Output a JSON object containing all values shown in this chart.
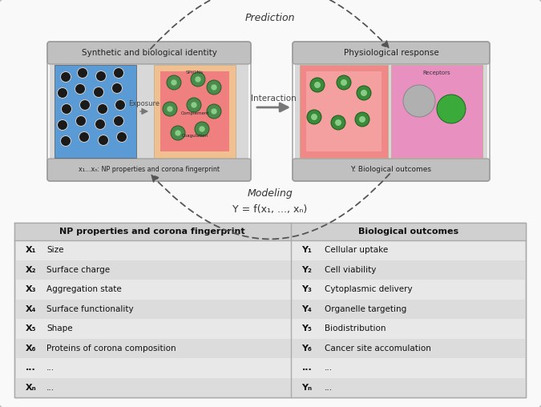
{
  "outer_bg": "#ffffff",
  "left_header": "NP properties and corona fingerprint",
  "right_header": "Biological outcomes",
  "x_labels": [
    "X₁",
    "X₂",
    "X₃",
    "X₄",
    "X₅",
    "X₆",
    "...",
    "Xₙ"
  ],
  "x_props": [
    "Size",
    "Surface charge",
    "Aggregation state",
    "Surface functionality",
    "Shape",
    "Proteins of corona composition",
    "...",
    "..."
  ],
  "y_labels": [
    "Y₁",
    "Y₂",
    "Y₃",
    "Y₄",
    "Y₅",
    "Y₆",
    "...",
    "Yₙ"
  ],
  "y_props": [
    "Cellular uptake",
    "Cell viability",
    "Cytoplasmic delivery",
    "Organelle targeting",
    "Biodistribution",
    "Cancer site accomulation",
    "...",
    "..."
  ],
  "prediction_label": "Prediction",
  "modeling_label": "Modeling",
  "formula_label": "Y = f(x₁, ..., xₙ)",
  "left_box_title": "Synthetic and biological identity",
  "right_box_title": "Physiological response",
  "left_sub_label": "x₁...xₙ: NP properties and corona fingerprint",
  "right_sub_label": "Y: Biological outcomes",
  "exposure_label": "Exposure",
  "interaction_label": "Interaction",
  "np_circles": [
    [
      0.095,
      0.81
    ],
    [
      0.13,
      0.795
    ],
    [
      0.165,
      0.81
    ],
    [
      0.085,
      0.78
    ],
    [
      0.12,
      0.765
    ],
    [
      0.155,
      0.775
    ],
    [
      0.095,
      0.745
    ],
    [
      0.135,
      0.735
    ],
    [
      0.17,
      0.748
    ],
    [
      0.085,
      0.715
    ],
    [
      0.12,
      0.705
    ],
    [
      0.16,
      0.715
    ],
    [
      0.095,
      0.685
    ],
    [
      0.135,
      0.675
    ],
    [
      0.17,
      0.688
    ]
  ]
}
